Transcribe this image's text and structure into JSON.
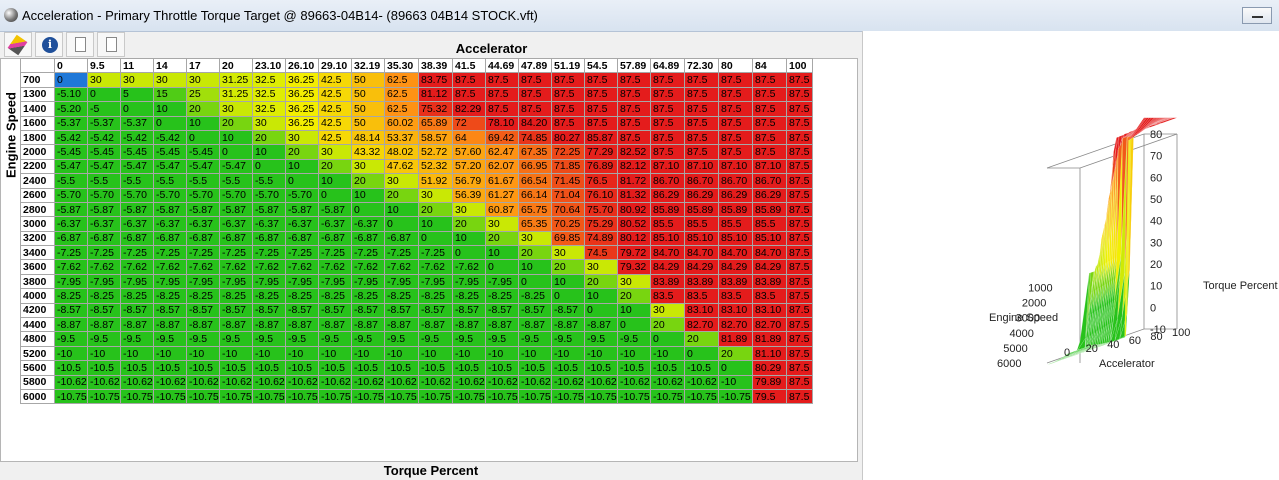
{
  "window": {
    "title": "Acceleration - Primary Throttle Torque Target @ 89663-04B14- (89663 04B14 STOCK.vft)"
  },
  "toolbar": {
    "buttons": [
      {
        "icon": "pencil-icon"
      },
      {
        "icon": "info-icon",
        "glyph": "i"
      },
      {
        "icon": "document-icon"
      },
      {
        "icon": "document-icon"
      }
    ]
  },
  "table": {
    "column_axis_label": "Accelerator",
    "row_axis_label": "Engine Speed",
    "value_label": "Torque Percent",
    "columns": [
      "0",
      "9.5",
      "11",
      "14",
      "17",
      "20",
      "23.10",
      "26.10",
      "29.10",
      "32.19",
      "35.30",
      "38.39",
      "41.5",
      "44.69",
      "47.89",
      "51.19",
      "54.5",
      "57.89",
      "64.89",
      "72.30",
      "80",
      "84",
      "100"
    ],
    "rows": [
      {
        "rpm": "700",
        "values": [
          "0",
          "30",
          "30",
          "30",
          "30",
          "31.25",
          "32.5",
          "36.25",
          "42.5",
          "50",
          "62.5",
          "83.75",
          "87.5",
          "87.5",
          "87.5",
          "87.5",
          "87.5",
          "87.5",
          "87.5",
          "87.5",
          "87.5",
          "87.5",
          "87.5"
        ]
      },
      {
        "rpm": "1300",
        "values": [
          "-5.10",
          "0",
          "5",
          "15",
          "25",
          "31.25",
          "32.5",
          "36.25",
          "42.5",
          "50",
          "62.5",
          "81.12",
          "87.5",
          "87.5",
          "87.5",
          "87.5",
          "87.5",
          "87.5",
          "87.5",
          "87.5",
          "87.5",
          "87.5",
          "87.5"
        ]
      },
      {
        "rpm": "1400",
        "values": [
          "-5.20",
          "-5",
          "0",
          "10",
          "20",
          "30",
          "32.5",
          "36.25",
          "42.5",
          "50",
          "62.5",
          "75.32",
          "82.29",
          "87.5",
          "87.5",
          "87.5",
          "87.5",
          "87.5",
          "87.5",
          "87.5",
          "87.5",
          "87.5",
          "87.5"
        ]
      },
      {
        "rpm": "1600",
        "values": [
          "-5.37",
          "-5.37",
          "-5.37",
          "0",
          "10",
          "20",
          "30",
          "36.25",
          "42.5",
          "50",
          "60.02",
          "65.89",
          "72",
          "78.10",
          "84.20",
          "87.5",
          "87.5",
          "87.5",
          "87.5",
          "87.5",
          "87.5",
          "87.5",
          "87.5"
        ]
      },
      {
        "rpm": "1800",
        "values": [
          "-5.42",
          "-5.42",
          "-5.42",
          "-5.42",
          "0",
          "10",
          "20",
          "30",
          "42.5",
          "48.14",
          "53.37",
          "58.57",
          "64",
          "69.42",
          "74.85",
          "80.27",
          "85.87",
          "87.5",
          "87.5",
          "87.5",
          "87.5",
          "87.5",
          "87.5"
        ]
      },
      {
        "rpm": "2000",
        "values": [
          "-5.45",
          "-5.45",
          "-5.45",
          "-5.45",
          "-5.45",
          "0",
          "10",
          "20",
          "30",
          "43.32",
          "48.02",
          "52.72",
          "57.60",
          "62.47",
          "67.35",
          "72.25",
          "77.29",
          "82.52",
          "87.5",
          "87.5",
          "87.5",
          "87.5",
          "87.5"
        ]
      },
      {
        "rpm": "2200",
        "values": [
          "-5.47",
          "-5.47",
          "-5.47",
          "-5.47",
          "-5.47",
          "-5.47",
          "0",
          "10",
          "20",
          "30",
          "47.62",
          "52.32",
          "57.20",
          "62.07",
          "66.95",
          "71.85",
          "76.89",
          "82.12",
          "87.10",
          "87.10",
          "87.10",
          "87.10",
          "87.5"
        ]
      },
      {
        "rpm": "2400",
        "values": [
          "-5.5",
          "-5.5",
          "-5.5",
          "-5.5",
          "-5.5",
          "-5.5",
          "-5.5",
          "0",
          "10",
          "20",
          "30",
          "51.92",
          "56.79",
          "61.67",
          "66.54",
          "71.45",
          "76.5",
          "81.72",
          "86.70",
          "86.70",
          "86.70",
          "86.70",
          "87.5"
        ]
      },
      {
        "rpm": "2600",
        "values": [
          "-5.70",
          "-5.70",
          "-5.70",
          "-5.70",
          "-5.70",
          "-5.70",
          "-5.70",
          "-5.70",
          "0",
          "10",
          "20",
          "30",
          "56.39",
          "61.27",
          "66.14",
          "71.04",
          "76.10",
          "81.32",
          "86.29",
          "86.29",
          "86.29",
          "86.29",
          "87.5"
        ]
      },
      {
        "rpm": "2800",
        "values": [
          "-5.87",
          "-5.87",
          "-5.87",
          "-5.87",
          "-5.87",
          "-5.87",
          "-5.87",
          "-5.87",
          "-5.87",
          "0",
          "10",
          "20",
          "30",
          "60.87",
          "65.75",
          "70.64",
          "75.70",
          "80.92",
          "85.89",
          "85.89",
          "85.89",
          "85.89",
          "87.5"
        ]
      },
      {
        "rpm": "3000",
        "values": [
          "-6.37",
          "-6.37",
          "-6.37",
          "-6.37",
          "-6.37",
          "-6.37",
          "-6.37",
          "-6.37",
          "-6.37",
          "-6.37",
          "0",
          "10",
          "20",
          "30",
          "65.35",
          "70.25",
          "75.29",
          "80.52",
          "85.5",
          "85.5",
          "85.5",
          "85.5",
          "87.5"
        ]
      },
      {
        "rpm": "3200",
        "values": [
          "-6.87",
          "-6.87",
          "-6.87",
          "-6.87",
          "-6.87",
          "-6.87",
          "-6.87",
          "-6.87",
          "-6.87",
          "-6.87",
          "-6.87",
          "0",
          "10",
          "20",
          "30",
          "69.85",
          "74.89",
          "80.12",
          "85.10",
          "85.10",
          "85.10",
          "85.10",
          "87.5"
        ]
      },
      {
        "rpm": "3400",
        "values": [
          "-7.25",
          "-7.25",
          "-7.25",
          "-7.25",
          "-7.25",
          "-7.25",
          "-7.25",
          "-7.25",
          "-7.25",
          "-7.25",
          "-7.25",
          "-7.25",
          "0",
          "10",
          "20",
          "30",
          "74.5",
          "79.72",
          "84.70",
          "84.70",
          "84.70",
          "84.70",
          "87.5"
        ]
      },
      {
        "rpm": "3600",
        "values": [
          "-7.62",
          "-7.62",
          "-7.62",
          "-7.62",
          "-7.62",
          "-7.62",
          "-7.62",
          "-7.62",
          "-7.62",
          "-7.62",
          "-7.62",
          "-7.62",
          "-7.62",
          "0",
          "10",
          "20",
          "30",
          "79.32",
          "84.29",
          "84.29",
          "84.29",
          "84.29",
          "87.5"
        ]
      },
      {
        "rpm": "3800",
        "values": [
          "-7.95",
          "-7.95",
          "-7.95",
          "-7.95",
          "-7.95",
          "-7.95",
          "-7.95",
          "-7.95",
          "-7.95",
          "-7.95",
          "-7.95",
          "-7.95",
          "-7.95",
          "-7.95",
          "0",
          "10",
          "20",
          "30",
          "83.89",
          "83.89",
          "83.89",
          "83.89",
          "87.5"
        ]
      },
      {
        "rpm": "4000",
        "values": [
          "-8.25",
          "-8.25",
          "-8.25",
          "-8.25",
          "-8.25",
          "-8.25",
          "-8.25",
          "-8.25",
          "-8.25",
          "-8.25",
          "-8.25",
          "-8.25",
          "-8.25",
          "-8.25",
          "-8.25",
          "0",
          "10",
          "20",
          "83.5",
          "83.5",
          "83.5",
          "83.5",
          "87.5"
        ]
      },
      {
        "rpm": "4200",
        "values": [
          "-8.57",
          "-8.57",
          "-8.57",
          "-8.57",
          "-8.57",
          "-8.57",
          "-8.57",
          "-8.57",
          "-8.57",
          "-8.57",
          "-8.57",
          "-8.57",
          "-8.57",
          "-8.57",
          "-8.57",
          "-8.57",
          "0",
          "10",
          "30",
          "83.10",
          "83.10",
          "83.10",
          "87.5"
        ]
      },
      {
        "rpm": "4400",
        "values": [
          "-8.87",
          "-8.87",
          "-8.87",
          "-8.87",
          "-8.87",
          "-8.87",
          "-8.87",
          "-8.87",
          "-8.87",
          "-8.87",
          "-8.87",
          "-8.87",
          "-8.87",
          "-8.87",
          "-8.87",
          "-8.87",
          "-8.87",
          "0",
          "20",
          "82.70",
          "82.70",
          "82.70",
          "87.5"
        ]
      },
      {
        "rpm": "4800",
        "values": [
          "-9.5",
          "-9.5",
          "-9.5",
          "-9.5",
          "-9.5",
          "-9.5",
          "-9.5",
          "-9.5",
          "-9.5",
          "-9.5",
          "-9.5",
          "-9.5",
          "-9.5",
          "-9.5",
          "-9.5",
          "-9.5",
          "-9.5",
          "-9.5",
          "0",
          "20",
          "81.89",
          "81.89",
          "87.5"
        ]
      },
      {
        "rpm": "5200",
        "values": [
          "-10",
          "-10",
          "-10",
          "-10",
          "-10",
          "-10",
          "-10",
          "-10",
          "-10",
          "-10",
          "-10",
          "-10",
          "-10",
          "-10",
          "-10",
          "-10",
          "-10",
          "-10",
          "-10",
          "0",
          "20",
          "81.10",
          "87.5"
        ]
      },
      {
        "rpm": "5600",
        "values": [
          "-10.5",
          "-10.5",
          "-10.5",
          "-10.5",
          "-10.5",
          "-10.5",
          "-10.5",
          "-10.5",
          "-10.5",
          "-10.5",
          "-10.5",
          "-10.5",
          "-10.5",
          "-10.5",
          "-10.5",
          "-10.5",
          "-10.5",
          "-10.5",
          "-10.5",
          "-10.5",
          "0",
          "80.29",
          "87.5"
        ]
      },
      {
        "rpm": "5800",
        "values": [
          "-10.62",
          "-10.62",
          "-10.62",
          "-10.62",
          "-10.62",
          "-10.62",
          "-10.62",
          "-10.62",
          "-10.62",
          "-10.62",
          "-10.62",
          "-10.62",
          "-10.62",
          "-10.62",
          "-10.62",
          "-10.62",
          "-10.62",
          "-10.62",
          "-10.62",
          "-10.62",
          "-10",
          "79.89",
          "87.5"
        ]
      },
      {
        "rpm": "6000",
        "values": [
          "-10.75",
          "-10.75",
          "-10.75",
          "-10.75",
          "-10.75",
          "-10.75",
          "-10.75",
          "-10.75",
          "-10.75",
          "-10.75",
          "-10.75",
          "-10.75",
          "-10.75",
          "-10.75",
          "-10.75",
          "-10.75",
          "-10.75",
          "-10.75",
          "-10.75",
          "-10.75",
          "-10.75",
          "79.5",
          "87.5"
        ]
      }
    ],
    "selected_cell": {
      "row": 0,
      "col": 0
    },
    "colors": {
      "selected": "#1f78d8",
      "low": "#27c21b",
      "mid": "#f2f200",
      "high": "#e41c1c"
    }
  },
  "surface_plot": {
    "x_axis_label": "Accelerator",
    "y_axis_label": "Engine Speed",
    "z_axis_label": "Torque Percent",
    "x_ticks": [
      "0",
      "20",
      "40",
      "60",
      "80",
      "100"
    ],
    "y_ticks": [
      "1000",
      "2000",
      "3000",
      "4000",
      "5000",
      "6000"
    ],
    "z_ticks": [
      "80",
      "70",
      "60",
      "50",
      "40",
      "30",
      "20",
      "10",
      "0",
      "-10"
    ]
  }
}
